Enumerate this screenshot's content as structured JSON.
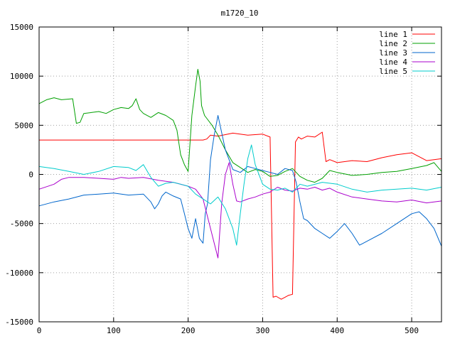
{
  "chart_data": {
    "type": "line",
    "title": "m1720_10",
    "xlabel": "",
    "ylabel": "",
    "xlim": [
      0,
      540
    ],
    "ylim": [
      -15000,
      15000
    ],
    "xticks": [
      0,
      100,
      200,
      300,
      400,
      500
    ],
    "yticks": [
      -15000,
      -10000,
      -5000,
      0,
      5000,
      10000,
      15000
    ],
    "grid": true,
    "legend_position": "top-right",
    "series": [
      {
        "name": "line 1",
        "color": "#ff0000",
        "x": [
          0,
          100,
          220,
          225,
          230,
          240,
          260,
          280,
          300,
          310,
          314,
          318,
          325,
          330,
          335,
          340,
          344,
          348,
          352,
          360,
          370,
          380,
          385,
          390,
          400,
          420,
          440,
          460,
          480,
          500,
          520,
          540
        ],
        "y": [
          3500,
          3500,
          3500,
          3600,
          4000,
          3900,
          4200,
          4000,
          4100,
          3800,
          -12500,
          -12400,
          -12700,
          -12500,
          -12300,
          -12200,
          3300,
          3800,
          3600,
          3900,
          3800,
          4300,
          1300,
          1500,
          1200,
          1400,
          1300,
          1700,
          2000,
          2200,
          1400,
          1600
        ]
      },
      {
        "name": "line 2",
        "color": "#00a000",
        "x": [
          0,
          10,
          20,
          30,
          45,
          50,
          55,
          60,
          70,
          80,
          90,
          100,
          110,
          120,
          125,
          130,
          135,
          140,
          150,
          160,
          170,
          180,
          185,
          190,
          195,
          200,
          205,
          210,
          213,
          216,
          218,
          222,
          226,
          232,
          240,
          250,
          260,
          270,
          280,
          290,
          300,
          310,
          320,
          330,
          340,
          350,
          360,
          370,
          380,
          390,
          400,
          420,
          440,
          460,
          480,
          500,
          520,
          530,
          540
        ],
        "y": [
          7200,
          7600,
          7800,
          7600,
          7700,
          5200,
          5300,
          6200,
          6300,
          6400,
          6200,
          6600,
          6800,
          6700,
          7000,
          7700,
          6600,
          6200,
          5800,
          6300,
          6000,
          5500,
          4500,
          2000,
          1000,
          300,
          6000,
          9000,
          10700,
          9500,
          7000,
          6000,
          5600,
          5000,
          4000,
          2500,
          1200,
          700,
          200,
          500,
          300,
          -200,
          -100,
          300,
          600,
          -200,
          -600,
          -800,
          -400,
          400,
          200,
          -100,
          0,
          200,
          300,
          600,
          900,
          1200,
          300
        ]
      },
      {
        "name": "line 3",
        "color": "#0066cc",
        "x": [
          0,
          20,
          40,
          60,
          80,
          100,
          120,
          140,
          150,
          155,
          160,
          165,
          170,
          180,
          190,
          195,
          200,
          205,
          210,
          215,
          220,
          223,
          226,
          230,
          235,
          240,
          250,
          260,
          270,
          280,
          290,
          300,
          310,
          320,
          330,
          340,
          345,
          350,
          355,
          360,
          370,
          380,
          390,
          400,
          410,
          420,
          430,
          440,
          460,
          480,
          500,
          510,
          520,
          530,
          540
        ],
        "y": [
          -3200,
          -2800,
          -2500,
          -2100,
          -2000,
          -1900,
          -2100,
          -2000,
          -2800,
          -3500,
          -3000,
          -2200,
          -1800,
          -2200,
          -2500,
          -4000,
          -5500,
          -6500,
          -4500,
          -6500,
          -7000,
          -4000,
          -3000,
          1500,
          4000,
          6000,
          2500,
          500,
          200,
          800,
          600,
          400,
          200,
          0,
          600,
          400,
          -800,
          -2800,
          -4500,
          -4700,
          -5500,
          -6000,
          -6500,
          -5800,
          -5000,
          -6000,
          -7200,
          -6800,
          -6000,
          -5000,
          -4000,
          -3800,
          -4500,
          -5500,
          -7300
        ]
      },
      {
        "name": "line 4",
        "color": "#aa00cc",
        "x": [
          0,
          20,
          30,
          40,
          60,
          80,
          100,
          110,
          120,
          140,
          160,
          180,
          200,
          210,
          220,
          225,
          230,
          235,
          240,
          245,
          250,
          255,
          260,
          265,
          270,
          280,
          290,
          300,
          310,
          320,
          330,
          340,
          350,
          360,
          370,
          380,
          390,
          400,
          420,
          440,
          460,
          480,
          500,
          520,
          540
        ],
        "y": [
          -1500,
          -1000,
          -500,
          -300,
          -300,
          -400,
          -500,
          -300,
          -400,
          -300,
          -600,
          -800,
          -1200,
          -1500,
          -2500,
          -4000,
          -5500,
          -7000,
          -8500,
          -3000,
          0,
          1200,
          -1000,
          -2700,
          -2800,
          -2500,
          -2300,
          -2000,
          -1800,
          -1300,
          -1600,
          -1700,
          -1400,
          -1500,
          -1300,
          -1600,
          -1400,
          -1800,
          -2300,
          -2500,
          -2700,
          -2800,
          -2600,
          -2900,
          -2700
        ]
      },
      {
        "name": "line 5",
        "color": "#00cccc",
        "x": [
          0,
          20,
          40,
          60,
          80,
          100,
          120,
          130,
          140,
          150,
          160,
          170,
          180,
          190,
          200,
          210,
          220,
          230,
          240,
          250,
          260,
          265,
          270,
          275,
          280,
          285,
          290,
          300,
          310,
          320,
          330,
          340,
          350,
          360,
          380,
          400,
          420,
          440,
          460,
          480,
          500,
          520,
          540
        ],
        "y": [
          800,
          600,
          300,
          0,
          300,
          800,
          700,
          400,
          1000,
          -300,
          -1200,
          -900,
          -800,
          -1000,
          -1200,
          -2000,
          -2500,
          -3000,
          -2300,
          -3500,
          -5500,
          -7200,
          -4000,
          -1000,
          1600,
          3000,
          1000,
          -1000,
          -1500,
          -1600,
          -1400,
          -1800,
          -1000,
          -1200,
          -800,
          -1000,
          -1500,
          -1800,
          -1600,
          -1500,
          -1400,
          -1600,
          -1300
        ]
      }
    ]
  }
}
